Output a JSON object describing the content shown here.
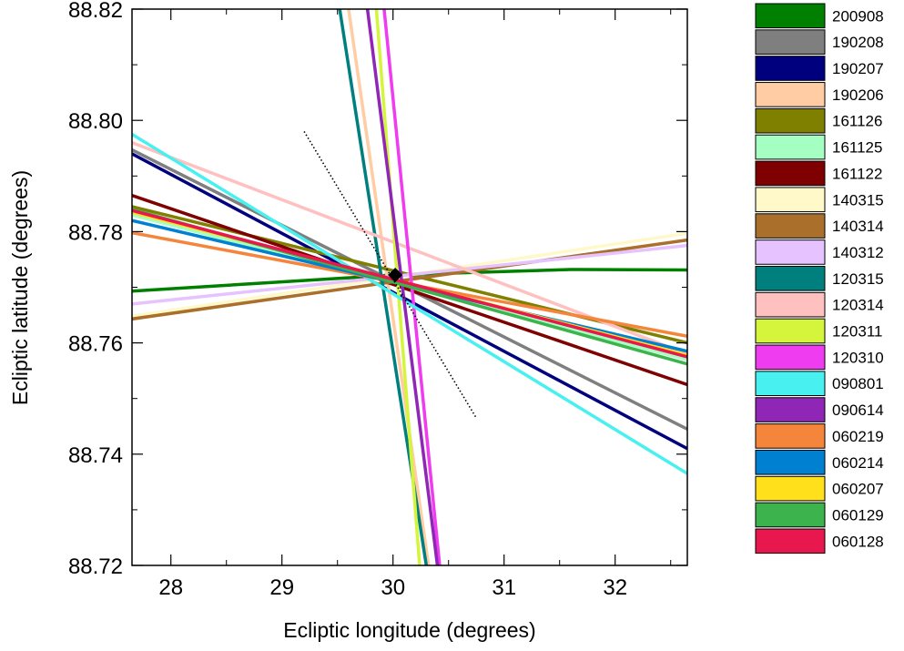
{
  "chart_data": {
    "type": "line",
    "xlabel": "Ecliptic longitude (degrees)",
    "ylabel": "Ecliptic latitude (degrees)",
    "xlim": [
      27.65,
      32.65
    ],
    "ylim": [
      88.72,
      88.82
    ],
    "xticks": [
      28,
      29,
      30,
      31,
      32
    ],
    "xtick_labels": [
      "28",
      "29",
      "30",
      "31",
      "32"
    ],
    "yticks": [
      88.72,
      88.74,
      88.76,
      88.78,
      88.8,
      88.82
    ],
    "ytick_labels": [
      "88.72",
      "88.74",
      "88.76",
      "88.78",
      "88.80",
      "88.82"
    ],
    "grid": false,
    "legend_position": "right",
    "series": [
      {
        "name": "200908",
        "color": "#007f00",
        "points": [
          [
            27.65,
            88.7693
          ],
          [
            30.0,
            88.7722
          ],
          [
            31.6,
            88.7732
          ],
          [
            32.65,
            88.7731
          ]
        ]
      },
      {
        "name": "190208",
        "color": "#7f7f7f",
        "points": [
          [
            27.65,
            88.7947
          ],
          [
            32.65,
            88.7445
          ]
        ]
      },
      {
        "name": "190207",
        "color": "#00007f",
        "points": [
          [
            27.65,
            88.794
          ],
          [
            32.65,
            88.741
          ]
        ]
      },
      {
        "name": "190206",
        "color": "#ffcca3",
        "points": [
          [
            29.6,
            88.82
          ],
          [
            30.32,
            88.72
          ]
        ]
      },
      {
        "name": "161126",
        "color": "#7f7f00",
        "points": [
          [
            27.65,
            88.7845
          ],
          [
            32.65,
            88.76
          ]
        ]
      },
      {
        "name": "161125",
        "color": "#a6ffc2",
        "points": [
          [
            27.65,
            88.783
          ],
          [
            32.65,
            88.757
          ]
        ]
      },
      {
        "name": "161122",
        "color": "#7f0000",
        "points": [
          [
            27.65,
            88.7865
          ],
          [
            32.65,
            88.7525
          ]
        ]
      },
      {
        "name": "140315",
        "color": "#fff8c8",
        "points": [
          [
            27.65,
            88.7648
          ],
          [
            32.65,
            88.7797
          ]
        ]
      },
      {
        "name": "140314",
        "color": "#aa6f2a",
        "points": [
          [
            27.65,
            88.7643
          ],
          [
            32.65,
            88.7785
          ]
        ]
      },
      {
        "name": "140312",
        "color": "#e6c2ff",
        "points": [
          [
            27.65,
            88.767
          ],
          [
            32.65,
            88.7775
          ]
        ]
      },
      {
        "name": "120315",
        "color": "#007f7f",
        "points": [
          [
            29.52,
            88.82
          ],
          [
            30.3,
            88.72
          ]
        ]
      },
      {
        "name": "120314",
        "color": "#ffc0c0",
        "points": [
          [
            27.65,
            88.796
          ],
          [
            32.65,
            88.758
          ]
        ]
      },
      {
        "name": "120311",
        "color": "#d4f53c",
        "points": [
          [
            29.85,
            88.82
          ],
          [
            30.24,
            88.72
          ]
        ]
      },
      {
        "name": "120310",
        "color": "#f03cf0",
        "points": [
          [
            29.92,
            88.82
          ],
          [
            30.42,
            88.72
          ]
        ]
      },
      {
        "name": "090801",
        "color": "#49f0f0",
        "points": [
          [
            27.65,
            88.7975
          ],
          [
            32.65,
            88.7365
          ]
        ]
      },
      {
        "name": "090614",
        "color": "#8f26b6",
        "points": [
          [
            29.77,
            88.82
          ],
          [
            30.4,
            88.72
          ]
        ]
      },
      {
        "name": "060219",
        "color": "#f5853a",
        "points": [
          [
            27.65,
            88.7798
          ],
          [
            32.65,
            88.7612
          ]
        ]
      },
      {
        "name": "060214",
        "color": "#0080d0",
        "points": [
          [
            27.65,
            88.782
          ],
          [
            32.65,
            88.7585
          ]
        ]
      },
      {
        "name": "060207",
        "color": "#ffe01a",
        "points": [
          [
            27.65,
            88.7835
          ],
          [
            32.65,
            88.7578
          ]
        ]
      },
      {
        "name": "060129",
        "color": "#3db34d",
        "points": [
          [
            27.65,
            88.784
          ],
          [
            32.65,
            88.7562
          ]
        ]
      },
      {
        "name": "060128",
        "color": "#e8184f",
        "points": [
          [
            27.65,
            88.7838
          ],
          [
            32.65,
            88.7575
          ]
        ]
      }
    ],
    "annotations": {
      "dotted_line": {
        "points": [
          [
            29.2,
            88.798
          ],
          [
            30.75,
            88.7465
          ]
        ],
        "color": "#000000"
      },
      "marker": {
        "x": 30.02,
        "y": 88.7722,
        "shape": "diamond",
        "color": "#000000"
      }
    }
  }
}
